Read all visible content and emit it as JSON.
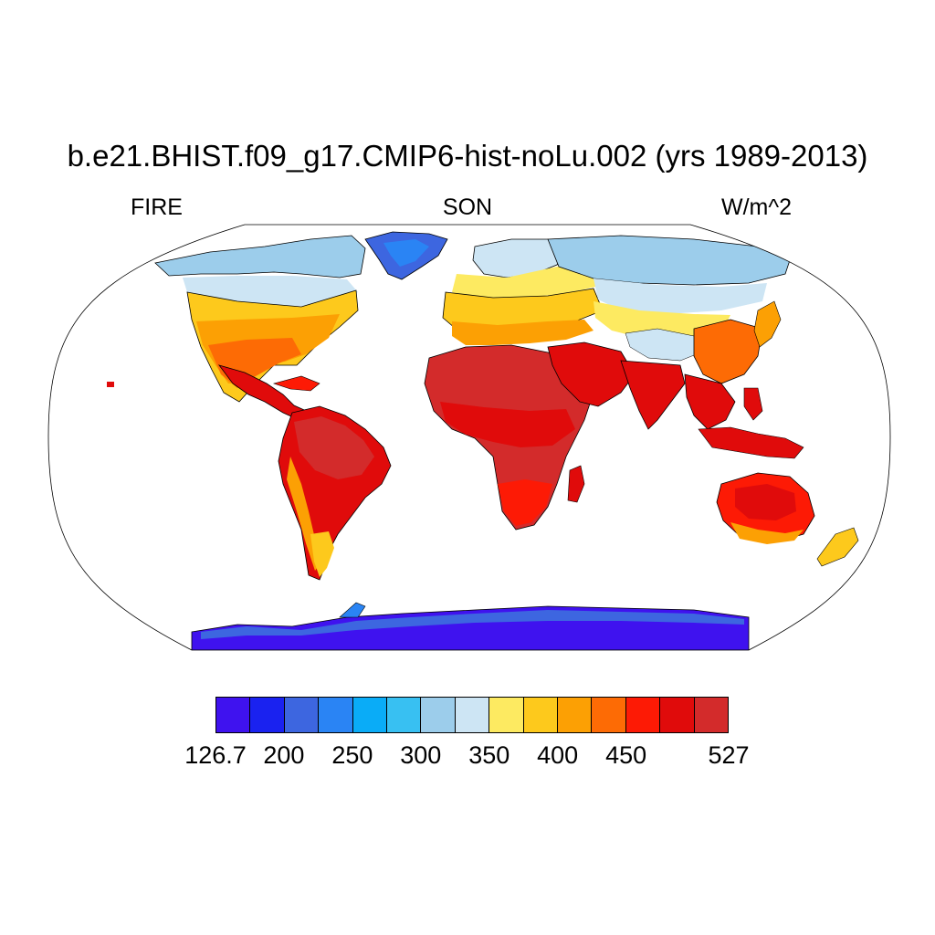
{
  "title": "b.e21.BHIST.f09_g17.CMIP6-hist-noLu.002 (yrs 1989-2013)",
  "left_label": "FIRE",
  "center_label": "SON",
  "right_label": "W/m^2",
  "colorbar": {
    "colors": [
      "#3f12ef",
      "#1a22f0",
      "#3d66e0",
      "#2a84f4",
      "#0aacf7",
      "#38c0f2",
      "#9ccdeb",
      "#cde5f4",
      "#fdea61",
      "#fdc91c",
      "#fca004",
      "#fd6b05",
      "#fd1a05",
      "#e00b0b",
      "#d32b2b"
    ],
    "labels": [
      {
        "text": "126.7",
        "boundary": 0
      },
      {
        "text": "200",
        "boundary": 2
      },
      {
        "text": "250",
        "boundary": 4
      },
      {
        "text": "300",
        "boundary": 6
      },
      {
        "text": "350",
        "boundary": 8
      },
      {
        "text": "400",
        "boundary": 10
      },
      {
        "text": "450",
        "boundary": 12
      },
      {
        "text": "527",
        "boundary": 15
      }
    ]
  },
  "map": {
    "projection": "Robinson",
    "variable": "FIRE",
    "season": "SON",
    "units": "W/m^2",
    "ocean_fill": "#ffffff",
    "coastline_color": "#000000"
  }
}
